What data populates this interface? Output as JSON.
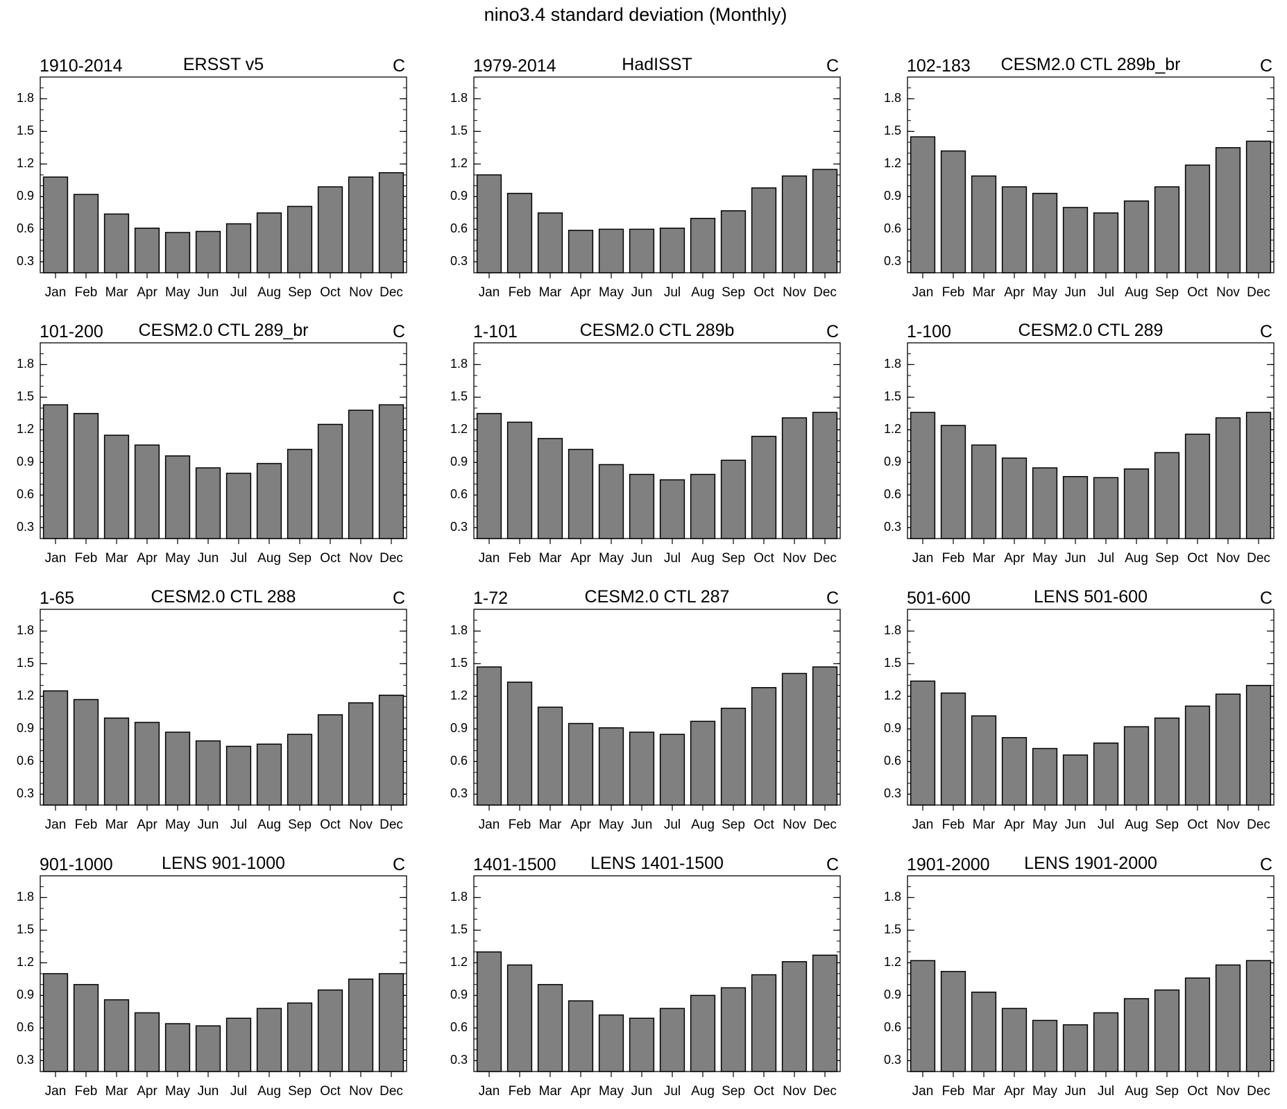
{
  "figure_title": "nino3.4 standard deviation (Monthly)",
  "chart_data": [
    {
      "type": "bar",
      "left_label": "1910-2014",
      "title": "ERSST v5",
      "units": "C",
      "categories": [
        "Jan",
        "Feb",
        "Mar",
        "Apr",
        "May",
        "Jun",
        "Jul",
        "Aug",
        "Sep",
        "Oct",
        "Nov",
        "Dec"
      ],
      "values": [
        1.08,
        0.92,
        0.74,
        0.61,
        0.57,
        0.58,
        0.65,
        0.75,
        0.81,
        0.99,
        1.08,
        1.12
      ],
      "ylim": [
        0.2,
        2.0
      ],
      "yticks": [
        "0.3",
        "0.6",
        "0.9",
        "1.2",
        "1.5",
        "1.8"
      ],
      "bar_color": "#808080"
    },
    {
      "type": "bar",
      "left_label": "1979-2014",
      "title": "HadISST",
      "units": "C",
      "categories": [
        "Jan",
        "Feb",
        "Mar",
        "Apr",
        "May",
        "Jun",
        "Jul",
        "Aug",
        "Sep",
        "Oct",
        "Nov",
        "Dec"
      ],
      "values": [
        1.1,
        0.93,
        0.75,
        0.59,
        0.6,
        0.6,
        0.61,
        0.7,
        0.77,
        0.98,
        1.09,
        1.15
      ],
      "ylim": [
        0.2,
        2.0
      ],
      "yticks": [
        "0.3",
        "0.6",
        "0.9",
        "1.2",
        "1.5",
        "1.8"
      ],
      "bar_color": "#808080"
    },
    {
      "type": "bar",
      "left_label": "102-183",
      "title": "CESM2.0 CTL 289b_br",
      "units": "C",
      "categories": [
        "Jan",
        "Feb",
        "Mar",
        "Apr",
        "May",
        "Jun",
        "Jul",
        "Aug",
        "Sep",
        "Oct",
        "Nov",
        "Dec"
      ],
      "values": [
        1.45,
        1.32,
        1.09,
        0.99,
        0.93,
        0.8,
        0.75,
        0.86,
        0.99,
        1.19,
        1.35,
        1.41
      ],
      "ylim": [
        0.2,
        2.0
      ],
      "yticks": [
        "0.3",
        "0.6",
        "0.9",
        "1.2",
        "1.5",
        "1.8"
      ],
      "bar_color": "#808080"
    },
    {
      "type": "bar",
      "left_label": "101-200",
      "title": "CESM2.0 CTL 289_br",
      "units": "C",
      "categories": [
        "Jan",
        "Feb",
        "Mar",
        "Apr",
        "May",
        "Jun",
        "Jul",
        "Aug",
        "Sep",
        "Oct",
        "Nov",
        "Dec"
      ],
      "values": [
        1.43,
        1.35,
        1.15,
        1.06,
        0.96,
        0.85,
        0.8,
        0.89,
        1.02,
        1.25,
        1.38,
        1.43
      ],
      "ylim": [
        0.2,
        2.0
      ],
      "yticks": [
        "0.3",
        "0.6",
        "0.9",
        "1.2",
        "1.5",
        "1.8"
      ],
      "bar_color": "#808080"
    },
    {
      "type": "bar",
      "left_label": "1-101",
      "title": "CESM2.0 CTL 289b",
      "units": "C",
      "categories": [
        "Jan",
        "Feb",
        "Mar",
        "Apr",
        "May",
        "Jun",
        "Jul",
        "Aug",
        "Sep",
        "Oct",
        "Nov",
        "Dec"
      ],
      "values": [
        1.35,
        1.27,
        1.12,
        1.02,
        0.88,
        0.79,
        0.74,
        0.79,
        0.92,
        1.14,
        1.31,
        1.36
      ],
      "ylim": [
        0.2,
        2.0
      ],
      "yticks": [
        "0.3",
        "0.6",
        "0.9",
        "1.2",
        "1.5",
        "1.8"
      ],
      "bar_color": "#808080"
    },
    {
      "type": "bar",
      "left_label": "1-100",
      "title": "CESM2.0 CTL 289",
      "units": "C",
      "categories": [
        "Jan",
        "Feb",
        "Mar",
        "Apr",
        "May",
        "Jun",
        "Jul",
        "Aug",
        "Sep",
        "Oct",
        "Nov",
        "Dec"
      ],
      "values": [
        1.36,
        1.24,
        1.06,
        0.94,
        0.85,
        0.77,
        0.76,
        0.84,
        0.99,
        1.16,
        1.31,
        1.36
      ],
      "ylim": [
        0.2,
        2.0
      ],
      "yticks": [
        "0.3",
        "0.6",
        "0.9",
        "1.2",
        "1.5",
        "1.8"
      ],
      "bar_color": "#808080"
    },
    {
      "type": "bar",
      "left_label": "1-65",
      "title": "CESM2.0 CTL 288",
      "units": "C",
      "categories": [
        "Jan",
        "Feb",
        "Mar",
        "Apr",
        "May",
        "Jun",
        "Jul",
        "Aug",
        "Sep",
        "Oct",
        "Nov",
        "Dec"
      ],
      "values": [
        1.25,
        1.17,
        1.0,
        0.96,
        0.87,
        0.79,
        0.74,
        0.76,
        0.85,
        1.03,
        1.14,
        1.21
      ],
      "ylim": [
        0.2,
        2.0
      ],
      "yticks": [
        "0.3",
        "0.6",
        "0.9",
        "1.2",
        "1.5",
        "1.8"
      ],
      "bar_color": "#808080"
    },
    {
      "type": "bar",
      "left_label": "1-72",
      "title": "CESM2.0 CTL 287",
      "units": "C",
      "categories": [
        "Jan",
        "Feb",
        "Mar",
        "Apr",
        "May",
        "Jun",
        "Jul",
        "Aug",
        "Sep",
        "Oct",
        "Nov",
        "Dec"
      ],
      "values": [
        1.47,
        1.33,
        1.1,
        0.95,
        0.91,
        0.87,
        0.85,
        0.97,
        1.09,
        1.28,
        1.41,
        1.47
      ],
      "ylim": [
        0.2,
        2.0
      ],
      "yticks": [
        "0.3",
        "0.6",
        "0.9",
        "1.2",
        "1.5",
        "1.8"
      ],
      "bar_color": "#808080"
    },
    {
      "type": "bar",
      "left_label": "501-600",
      "title": "LENS 501-600",
      "units": "C",
      "categories": [
        "Jan",
        "Feb",
        "Mar",
        "Apr",
        "May",
        "Jun",
        "Jul",
        "Aug",
        "Sep",
        "Oct",
        "Nov",
        "Dec"
      ],
      "values": [
        1.34,
        1.23,
        1.02,
        0.82,
        0.72,
        0.66,
        0.77,
        0.92,
        1.0,
        1.11,
        1.22,
        1.3
      ],
      "ylim": [
        0.2,
        2.0
      ],
      "yticks": [
        "0.3",
        "0.6",
        "0.9",
        "1.2",
        "1.5",
        "1.8"
      ],
      "bar_color": "#808080"
    },
    {
      "type": "bar",
      "left_label": "901-1000",
      "title": "LENS 901-1000",
      "units": "C",
      "categories": [
        "Jan",
        "Feb",
        "Mar",
        "Apr",
        "May",
        "Jun",
        "Jul",
        "Aug",
        "Sep",
        "Oct",
        "Nov",
        "Dec"
      ],
      "values": [
        1.1,
        1.0,
        0.86,
        0.74,
        0.64,
        0.62,
        0.69,
        0.78,
        0.83,
        0.95,
        1.05,
        1.1
      ],
      "ylim": [
        0.2,
        2.0
      ],
      "yticks": [
        "0.3",
        "0.6",
        "0.9",
        "1.2",
        "1.5",
        "1.8"
      ],
      "bar_color": "#808080"
    },
    {
      "type": "bar",
      "left_label": "1401-1500",
      "title": "LENS 1401-1500",
      "units": "C",
      "categories": [
        "Jan",
        "Feb",
        "Mar",
        "Apr",
        "May",
        "Jun",
        "Jul",
        "Aug",
        "Sep",
        "Oct",
        "Nov",
        "Dec"
      ],
      "values": [
        1.3,
        1.18,
        1.0,
        0.85,
        0.72,
        0.69,
        0.78,
        0.9,
        0.97,
        1.09,
        1.21,
        1.27
      ],
      "ylim": [
        0.2,
        2.0
      ],
      "yticks": [
        "0.3",
        "0.6",
        "0.9",
        "1.2",
        "1.5",
        "1.8"
      ],
      "bar_color": "#808080"
    },
    {
      "type": "bar",
      "left_label": "1901-2000",
      "title": "LENS 1901-2000",
      "units": "C",
      "categories": [
        "Jan",
        "Feb",
        "Mar",
        "Apr",
        "May",
        "Jun",
        "Jul",
        "Aug",
        "Sep",
        "Oct",
        "Nov",
        "Dec"
      ],
      "values": [
        1.22,
        1.12,
        0.93,
        0.78,
        0.67,
        0.63,
        0.74,
        0.87,
        0.95,
        1.06,
        1.18,
        1.22
      ],
      "ylim": [
        0.2,
        2.0
      ],
      "yticks": [
        "0.3",
        "0.6",
        "0.9",
        "1.2",
        "1.5",
        "1.8"
      ],
      "bar_color": "#808080"
    }
  ]
}
